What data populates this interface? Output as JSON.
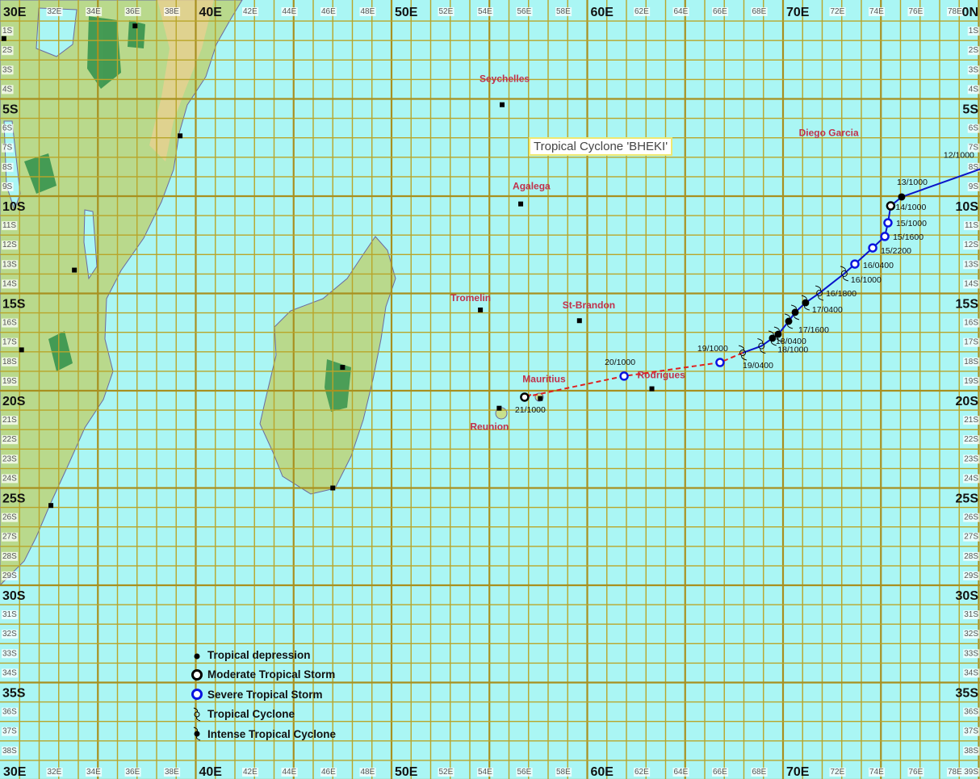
{
  "map": {
    "title": "Tropical Cyclone 'BHEKI'",
    "colors": {
      "ocean": "#aaf6f4",
      "grid": "#b9a52a",
      "grid_major": "#a89020",
      "land": "#b9d98c",
      "land_high": "#e8cf90",
      "forest": "#2f8f4a",
      "track_solid": "#0a14c8",
      "track_dashed": "#e02020",
      "place_label": "#c0304a",
      "sts_ring": "#0a14e0"
    },
    "top_labels": [
      "30E",
      "32E",
      "34E",
      "36E",
      "38E",
      "40E",
      "42E",
      "44E",
      "46E",
      "48E",
      "50E",
      "52E",
      "54E",
      "56E",
      "58E",
      "60E",
      "62E",
      "64E",
      "66E",
      "68E",
      "70E",
      "72E",
      "74E",
      "76E",
      "78E"
    ],
    "corner_top_right": "0N",
    "corner_bottom_right": "39S",
    "lat_labels": [
      "1S",
      "2S",
      "3S",
      "4S",
      "5S",
      "6S",
      "7S",
      "8S",
      "9S",
      "10S",
      "11S",
      "12S",
      "13S",
      "14S",
      "15S",
      "16S",
      "17S",
      "18S",
      "19S",
      "20S",
      "21S",
      "22S",
      "23S",
      "24S",
      "25S",
      "26S",
      "27S",
      "28S",
      "29S",
      "30S",
      "31S",
      "32S",
      "33S",
      "34S",
      "35S",
      "36S",
      "37S",
      "38S"
    ],
    "places": [
      {
        "name": "Seychelles",
        "lon": 55.65,
        "lat": 5.3
      },
      {
        "name": "Agalega",
        "lon": 56.6,
        "lat": 10.4
      },
      {
        "name": "Tromelin",
        "lon": 54.54,
        "lat": 15.85
      },
      {
        "name": "St-Brandon",
        "lon": 59.6,
        "lat": 16.4
      },
      {
        "name": "Diego Garcia",
        "lon": 72.5,
        "lat": 7.4
      },
      {
        "name": "Mauritius",
        "lon": 57.6,
        "lat": 20.4
      },
      {
        "name": "Reunion",
        "lon": 55.5,
        "lat": 20.9
      },
      {
        "name": "Rodrigues",
        "lon": 63.3,
        "lat": 19.9
      }
    ],
    "town_markers": [
      {
        "lon": 36.9,
        "lat": 1.25
      },
      {
        "lon": 30.2,
        "lat": 1.9
      },
      {
        "lon": 39.2,
        "lat": 6.9
      },
      {
        "lon": 33.8,
        "lat": 13.8
      },
      {
        "lon": 47.5,
        "lat": 18.8
      },
      {
        "lon": 31.1,
        "lat": 17.9
      },
      {
        "lon": 47.0,
        "lat": 25.0
      },
      {
        "lon": 32.6,
        "lat": 25.9
      }
    ],
    "track": [
      {
        "label": "12/1000",
        "lon": 80.1,
        "lat": 8.6,
        "type": "none"
      },
      {
        "label": "13/1000",
        "lon": 76.06,
        "lat": 10.04,
        "type": "TD"
      },
      {
        "label": "14/1000",
        "lon": 75.5,
        "lat": 10.5,
        "type": "MTS"
      },
      {
        "label": "15/1000",
        "lon": 75.36,
        "lat": 11.37,
        "type": "STS"
      },
      {
        "label": "15/1600",
        "lon": 75.2,
        "lat": 12.07,
        "type": "STS"
      },
      {
        "label": "15/2200",
        "lon": 74.58,
        "lat": 12.66,
        "type": "STS"
      },
      {
        "label": "16/0400",
        "lon": 73.67,
        "lat": 13.49,
        "type": "STS"
      },
      {
        "label": "16/1000",
        "lon": 73.13,
        "lat": 13.98,
        "type": "TC"
      },
      {
        "label": "16/1800",
        "lon": 71.86,
        "lat": 14.98,
        "type": "TC"
      },
      {
        "label": "17/0400",
        "lon": 71.15,
        "lat": 15.48,
        "type": "ITC"
      },
      {
        "label": "",
        "lon": 70.62,
        "lat": 15.97,
        "type": "ITC"
      },
      {
        "label": "17/1600",
        "lon": 70.29,
        "lat": 16.43,
        "type": "ITC"
      },
      {
        "label": "",
        "lon": 69.75,
        "lat": 17.1,
        "type": "ITC"
      },
      {
        "label": "18/0400",
        "lon": 69.46,
        "lat": 17.3,
        "type": "ITC"
      },
      {
        "label": "18/1000",
        "lon": 68.9,
        "lat": 17.7,
        "type": "TC"
      },
      {
        "label": "19/0400",
        "lon": 67.94,
        "lat": 18.05,
        "type": "TC"
      },
      {
        "label": "19/1000",
        "lon": 66.78,
        "lat": 18.55,
        "type": "STS"
      },
      {
        "label": "20/1000",
        "lon": 61.88,
        "lat": 19.25,
        "type": "STS"
      },
      {
        "label": "21/1000",
        "lon": 56.8,
        "lat": 20.33,
        "type": "MTS"
      }
    ],
    "legend": [
      {
        "type": "TD",
        "label": "Tropical depression"
      },
      {
        "type": "MTS",
        "label": "Moderate Tropical Storm"
      },
      {
        "type": "STS",
        "label": "Severe Tropical Storm"
      },
      {
        "type": "TC",
        "label": "Tropical Cyclone"
      },
      {
        "type": "ITC",
        "label": "Intense Tropical Cyclone"
      }
    ]
  }
}
